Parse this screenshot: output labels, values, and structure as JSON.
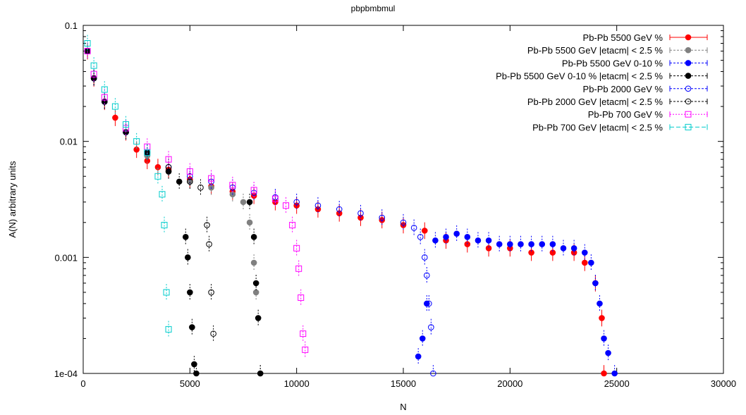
{
  "chart_data": {
    "type": "scatter",
    "title": "pbpbmbmul",
    "xlabel": "N",
    "ylabel": "A(N) arbitrary units",
    "xlim": [
      0,
      30000
    ],
    "ylim": [
      0.0001,
      0.1
    ],
    "yscale": "log",
    "grid": false,
    "legend_position": "top-right",
    "x_ticks": [
      "0",
      "5000",
      "10000",
      "15000",
      "20000",
      "25000",
      "30000"
    ],
    "y_ticks": [
      "1e-04",
      "0.001",
      "0.01",
      "0.1"
    ],
    "series": [
      {
        "name": "Pb-Pb 5500 GeV  %",
        "color": "#ff0000",
        "marker": "filled-circle",
        "points": [
          [
            200,
            0.06
          ],
          [
            500,
            0.035
          ],
          [
            1000,
            0.022
          ],
          [
            1500,
            0.016
          ],
          [
            2000,
            0.012
          ],
          [
            2500,
            0.0085
          ],
          [
            3000,
            0.0068
          ],
          [
            3500,
            0.006
          ],
          [
            4000,
            0.0057
          ],
          [
            5000,
            0.0047
          ],
          [
            6000,
            0.0041
          ],
          [
            7000,
            0.0037
          ],
          [
            8000,
            0.0034
          ],
          [
            9000,
            0.003
          ],
          [
            10000,
            0.0028
          ],
          [
            11000,
            0.0026
          ],
          [
            12000,
            0.0024
          ],
          [
            13000,
            0.0022
          ],
          [
            14000,
            0.0021
          ],
          [
            15000,
            0.0019
          ],
          [
            16000,
            0.0017
          ],
          [
            17000,
            0.0014
          ],
          [
            18000,
            0.0013
          ],
          [
            19000,
            0.0012
          ],
          [
            20000,
            0.0012
          ],
          [
            21000,
            0.0011
          ],
          [
            22000,
            0.0011
          ],
          [
            23000,
            0.0011
          ],
          [
            23500,
            0.0009
          ],
          [
            24000,
            0.0006
          ],
          [
            24300,
            0.0003
          ],
          [
            24400,
            0.0001
          ]
        ]
      },
      {
        "name": "Pb-Pb 5500 GeV |etacm| < 2.5 %",
        "color": "#808080",
        "marker": "filled-circle",
        "points": [
          [
            200,
            0.06
          ],
          [
            500,
            0.035
          ],
          [
            1000,
            0.022
          ],
          [
            2000,
            0.012
          ],
          [
            3000,
            0.0075
          ],
          [
            4000,
            0.0055
          ],
          [
            5000,
            0.0045
          ],
          [
            6000,
            0.004
          ],
          [
            7000,
            0.0035
          ],
          [
            7500,
            0.003
          ],
          [
            7800,
            0.002
          ],
          [
            8000,
            0.0009
          ],
          [
            8100,
            0.0005
          ],
          [
            8300,
            0.0001
          ]
        ]
      },
      {
        "name": "Pb-Pb 5500 GeV 0-10 %",
        "color": "#0000ff",
        "marker": "filled-circle",
        "points": [
          [
            16500,
            0.0014
          ],
          [
            17000,
            0.0015
          ],
          [
            17500,
            0.0016
          ],
          [
            18000,
            0.0015
          ],
          [
            18500,
            0.0014
          ],
          [
            19000,
            0.0014
          ],
          [
            19500,
            0.0013
          ],
          [
            20000,
            0.0013
          ],
          [
            20500,
            0.0013
          ],
          [
            21000,
            0.0013
          ],
          [
            21500,
            0.0013
          ],
          [
            22000,
            0.0013
          ],
          [
            22500,
            0.0012
          ],
          [
            23000,
            0.0012
          ],
          [
            23500,
            0.0011
          ],
          [
            23800,
            0.0009
          ],
          [
            24000,
            0.0006
          ],
          [
            24200,
            0.0004
          ],
          [
            24400,
            0.0002
          ],
          [
            24600,
            0.00015
          ],
          [
            24900,
            0.0001
          ],
          [
            16100,
            0.0004
          ],
          [
            15900,
            0.0002
          ],
          [
            15700,
            0.00014
          ]
        ]
      },
      {
        "name": "Pb-Pb 5500 GeV 0-10 %  |etacm| < 2.5 %",
        "color": "#000000",
        "marker": "filled-circle",
        "points": [
          [
            200,
            0.06
          ],
          [
            500,
            0.035
          ],
          [
            1000,
            0.022
          ],
          [
            2000,
            0.012
          ],
          [
            3000,
            0.008
          ],
          [
            4000,
            0.0055
          ],
          [
            4500,
            0.0045
          ],
          [
            4800,
            0.0015
          ],
          [
            4900,
            0.001
          ],
          [
            5000,
            0.0005
          ],
          [
            5100,
            0.00025
          ],
          [
            5200,
            0.00012
          ],
          [
            5300,
            0.0001
          ],
          [
            7800,
            0.003
          ],
          [
            8000,
            0.0015
          ],
          [
            8100,
            0.0006
          ],
          [
            8200,
            0.0003
          ],
          [
            8300,
            0.0001
          ]
        ]
      },
      {
        "name": "Pb-Pb 2000 GeV  %",
        "color": "#0000ff",
        "marker": "open-circle",
        "points": [
          [
            200,
            0.06
          ],
          [
            500,
            0.035
          ],
          [
            1000,
            0.022
          ],
          [
            2000,
            0.012
          ],
          [
            3000,
            0.008
          ],
          [
            4000,
            0.006
          ],
          [
            5000,
            0.005
          ],
          [
            6000,
            0.0045
          ],
          [
            7000,
            0.004
          ],
          [
            8000,
            0.0036
          ],
          [
            9000,
            0.0033
          ],
          [
            10000,
            0.003
          ],
          [
            11000,
            0.0028
          ],
          [
            12000,
            0.0026
          ],
          [
            13000,
            0.0024
          ],
          [
            14000,
            0.0022
          ],
          [
            15000,
            0.002
          ],
          [
            15500,
            0.0018
          ],
          [
            15800,
            0.0015
          ],
          [
            16000,
            0.001
          ],
          [
            16100,
            0.0007
          ],
          [
            16200,
            0.0004
          ],
          [
            16300,
            0.00025
          ],
          [
            16400,
            0.0001
          ]
        ]
      },
      {
        "name": "Pb-Pb 2000 GeV |etacm| < 2.5  %",
        "color": "#000000",
        "marker": "open-circle",
        "points": [
          [
            200,
            0.06
          ],
          [
            500,
            0.035
          ],
          [
            1000,
            0.022
          ],
          [
            2000,
            0.012
          ],
          [
            3000,
            0.008
          ],
          [
            4000,
            0.006
          ],
          [
            5000,
            0.0045
          ],
          [
            5500,
            0.004
          ],
          [
            5800,
            0.0019
          ],
          [
            5900,
            0.0013
          ],
          [
            6000,
            0.0005
          ],
          [
            6100,
            0.00022
          ]
        ]
      },
      {
        "name": "Pb-Pb 700 GeV  %",
        "color": "#ff00ff",
        "marker": "open-square",
        "points": [
          [
            200,
            0.06
          ],
          [
            500,
            0.038
          ],
          [
            1000,
            0.024
          ],
          [
            2000,
            0.013
          ],
          [
            3000,
            0.009
          ],
          [
            4000,
            0.007
          ],
          [
            5000,
            0.0055
          ],
          [
            6000,
            0.0048
          ],
          [
            7000,
            0.0042
          ],
          [
            8000,
            0.0038
          ],
          [
            9000,
            0.0032
          ],
          [
            9500,
            0.0028
          ],
          [
            9800,
            0.0019
          ],
          [
            10000,
            0.0012
          ],
          [
            10100,
            0.0008
          ],
          [
            10200,
            0.00045
          ],
          [
            10300,
            0.00022
          ],
          [
            10400,
            0.00016
          ]
        ]
      },
      {
        "name": "Pb-Pb 700 GeV |etacm| < 2.5 %",
        "color": "#00cccc",
        "marker": "open-square",
        "points": [
          [
            200,
            0.07
          ],
          [
            500,
            0.045
          ],
          [
            1000,
            0.028
          ],
          [
            1500,
            0.02
          ],
          [
            2000,
            0.014
          ],
          [
            2500,
            0.01
          ],
          [
            3000,
            0.008
          ],
          [
            3500,
            0.005
          ],
          [
            3700,
            0.0035
          ],
          [
            3800,
            0.0019
          ],
          [
            3900,
            0.0005
          ],
          [
            4000,
            0.00024
          ]
        ]
      }
    ]
  }
}
